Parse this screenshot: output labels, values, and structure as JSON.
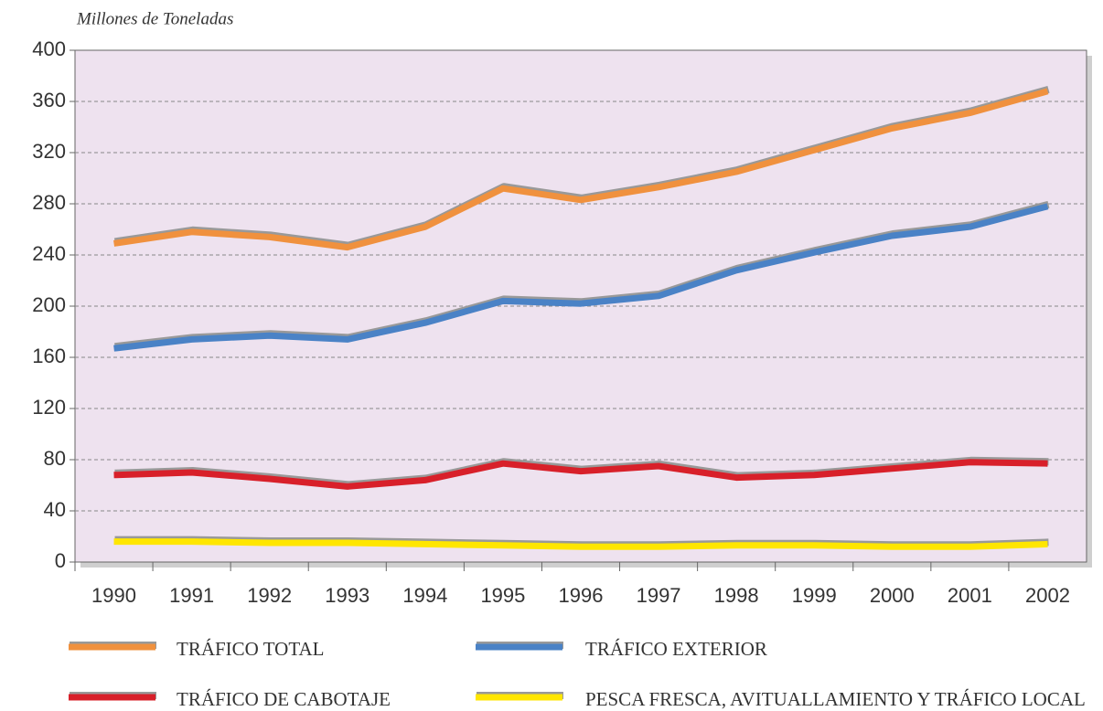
{
  "chart_data": {
    "type": "line",
    "y_axis_label": "Millones de Toneladas",
    "categories": [
      "1990",
      "1991",
      "1992",
      "1993",
      "1994",
      "1995",
      "1996",
      "1997",
      "1998",
      "1999",
      "2000",
      "2001",
      "2002"
    ],
    "series": [
      {
        "name": "TRÁFICO TOTAL",
        "color": "#f0913e",
        "values": [
          249,
          258,
          254,
          246,
          262,
          292,
          283,
          293,
          305,
          322,
          339,
          351,
          368
        ]
      },
      {
        "name": "TRÁFICO EXTERIOR",
        "color": "#4a82c6",
        "values": [
          167,
          174,
          177,
          174,
          187,
          204,
          202,
          208,
          228,
          242,
          255,
          262,
          278
        ]
      },
      {
        "name": "TRÁFICO DE CABOTAJE",
        "color": "#d8202a",
        "values": [
          68,
          70,
          65,
          59,
          64,
          77,
          71,
          75,
          66,
          68,
          73,
          78,
          77
        ]
      },
      {
        "name": "PESCA FRESCA, AVITUALLAMIENTO Y TRÁFICO LOCAL",
        "color": "#ffe600",
        "values": [
          16,
          16,
          15,
          15,
          14,
          13,
          12,
          12,
          13,
          13,
          12,
          12,
          14
        ]
      }
    ],
    "ylim": [
      0,
      400
    ],
    "yticks": [
      0,
      40,
      80,
      120,
      160,
      200,
      240,
      280,
      320,
      360,
      400
    ],
    "grid": true
  }
}
